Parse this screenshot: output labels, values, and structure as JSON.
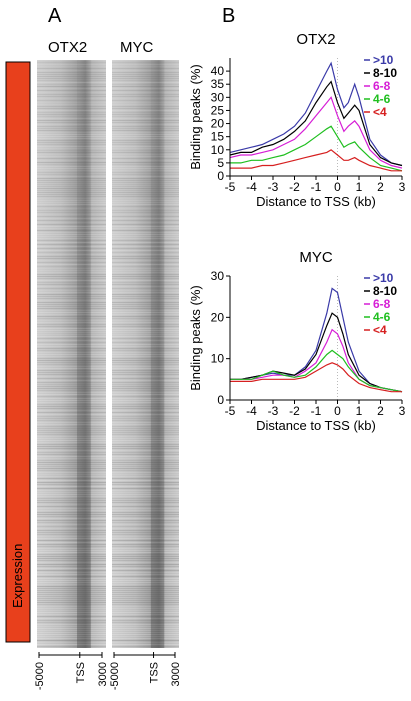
{
  "panel_a": {
    "label": "A",
    "heatmap_titles": [
      "OTX2",
      "MYC"
    ],
    "triangle_label": "Expression",
    "colors": {
      "triangle": "#e8401c",
      "heatmap_band": "#3a3a3a",
      "heatmap_bg": "#c8c8c8"
    }
  },
  "panel_b": {
    "label": "B"
  },
  "chart_data": [
    {
      "type": "heatmap",
      "title": "OTX2",
      "x_tick_labels": [
        "-5000",
        "TSS",
        "3000"
      ],
      "y_label": "Expression",
      "note": "rows ordered by increasing expression from top to bottom"
    },
    {
      "type": "heatmap",
      "title": "MYC",
      "x_tick_labels": [
        "-5000",
        "TSS",
        "3000"
      ],
      "y_label": "Expression"
    },
    {
      "type": "line",
      "title": "OTX2",
      "xlabel": "Distance to TSS (kb)",
      "ylabel": "Binding peaks (%)",
      "xlim": [
        -5,
        3
      ],
      "ylim": [
        0,
        45
      ],
      "x_ticks": [
        -5,
        -4,
        -3,
        -2,
        -1,
        0,
        1,
        2,
        3
      ],
      "y_ticks": [
        0,
        5,
        10,
        15,
        20,
        25,
        30,
        35,
        40
      ],
      "legend_position": "top-right",
      "x": [
        -5,
        -4.5,
        -4,
        -3.5,
        -3,
        -2.5,
        -2,
        -1.5,
        -1,
        -0.5,
        -0.3,
        0,
        0.3,
        0.5,
        0.8,
        1,
        1.5,
        2,
        2.5,
        3
      ],
      "series": [
        {
          "name": ">10",
          "color": "#3a3aa8",
          "values": [
            9,
            10,
            11,
            12,
            14,
            16,
            19,
            24,
            32,
            40,
            43,
            33,
            26,
            28,
            35,
            30,
            14,
            8,
            5,
            4
          ]
        },
        {
          "name": "8-10",
          "color": "#000000",
          "values": [
            8,
            9,
            9,
            11,
            12,
            14,
            17,
            21,
            28,
            34,
            36,
            28,
            22,
            24,
            27,
            25,
            12,
            7,
            5,
            4
          ]
        },
        {
          "name": "6-8",
          "color": "#d61ed6",
          "values": [
            7,
            8,
            8,
            9,
            10,
            12,
            14,
            18,
            23,
            28,
            30,
            23,
            17,
            19,
            21,
            19,
            10,
            6,
            4,
            3
          ]
        },
        {
          "name": "4-6",
          "color": "#1fbf1f",
          "values": [
            5,
            5,
            6,
            6,
            7,
            8,
            10,
            12,
            15,
            18,
            19,
            15,
            11,
            12,
            13,
            11,
            7,
            4,
            3,
            2
          ]
        },
        {
          "name": "<4",
          "color": "#d62020",
          "values": [
            3,
            3,
            3,
            4,
            4,
            5,
            6,
            7,
            8,
            9,
            10,
            8,
            6,
            6,
            7,
            6,
            4,
            3,
            2,
            2
          ]
        }
      ]
    },
    {
      "type": "line",
      "title": "MYC",
      "xlabel": "Distance to TSS (kb)",
      "ylabel": "Binding peaks (%)",
      "xlim": [
        -5,
        3
      ],
      "ylim": [
        0,
        30
      ],
      "x_ticks": [
        -5,
        -4,
        -3,
        -2,
        -1,
        0,
        1,
        2,
        3
      ],
      "y_ticks": [
        0,
        10,
        20,
        30
      ],
      "legend_position": "top-right",
      "x": [
        -5,
        -4.5,
        -4,
        -3.5,
        -3,
        -2.5,
        -2,
        -1.5,
        -1,
        -0.5,
        -0.25,
        0,
        0.25,
        0.5,
        1,
        1.5,
        2,
        2.5,
        3
      ],
      "series": [
        {
          "name": ">10",
          "color": "#3a3aa8",
          "values": [
            5,
            5,
            5.5,
            6,
            6.5,
            6,
            6,
            8,
            12,
            21,
            27,
            26,
            20,
            14,
            7,
            4,
            3,
            2.5,
            2
          ]
        },
        {
          "name": "8-10",
          "color": "#000000",
          "values": [
            5,
            5,
            5.5,
            6,
            7,
            6.5,
            6,
            7.5,
            11,
            18,
            21,
            20,
            16,
            11,
            6,
            4,
            3,
            2.5,
            2
          ]
        },
        {
          "name": "6-8",
          "color": "#d61ed6",
          "values": [
            5,
            5,
            5,
            5.5,
            6,
            6,
            5.5,
            7,
            9,
            14,
            17,
            16,
            13,
            9,
            5,
            3.5,
            3,
            2.5,
            2
          ]
        },
        {
          "name": "4-6",
          "color": "#1fbf1f",
          "values": [
            5,
            5,
            5,
            6,
            7,
            6,
            5.5,
            6,
            8,
            11,
            12,
            11,
            10,
            8,
            5,
            3.5,
            3,
            2.5,
            2
          ]
        },
        {
          "name": "<4",
          "color": "#d62020",
          "values": [
            4.5,
            4.5,
            4.5,
            5,
            5,
            5,
            5,
            5.5,
            7,
            8.5,
            9,
            8.5,
            7.5,
            6,
            4,
            3,
            2.5,
            2,
            2
          ]
        }
      ]
    }
  ]
}
